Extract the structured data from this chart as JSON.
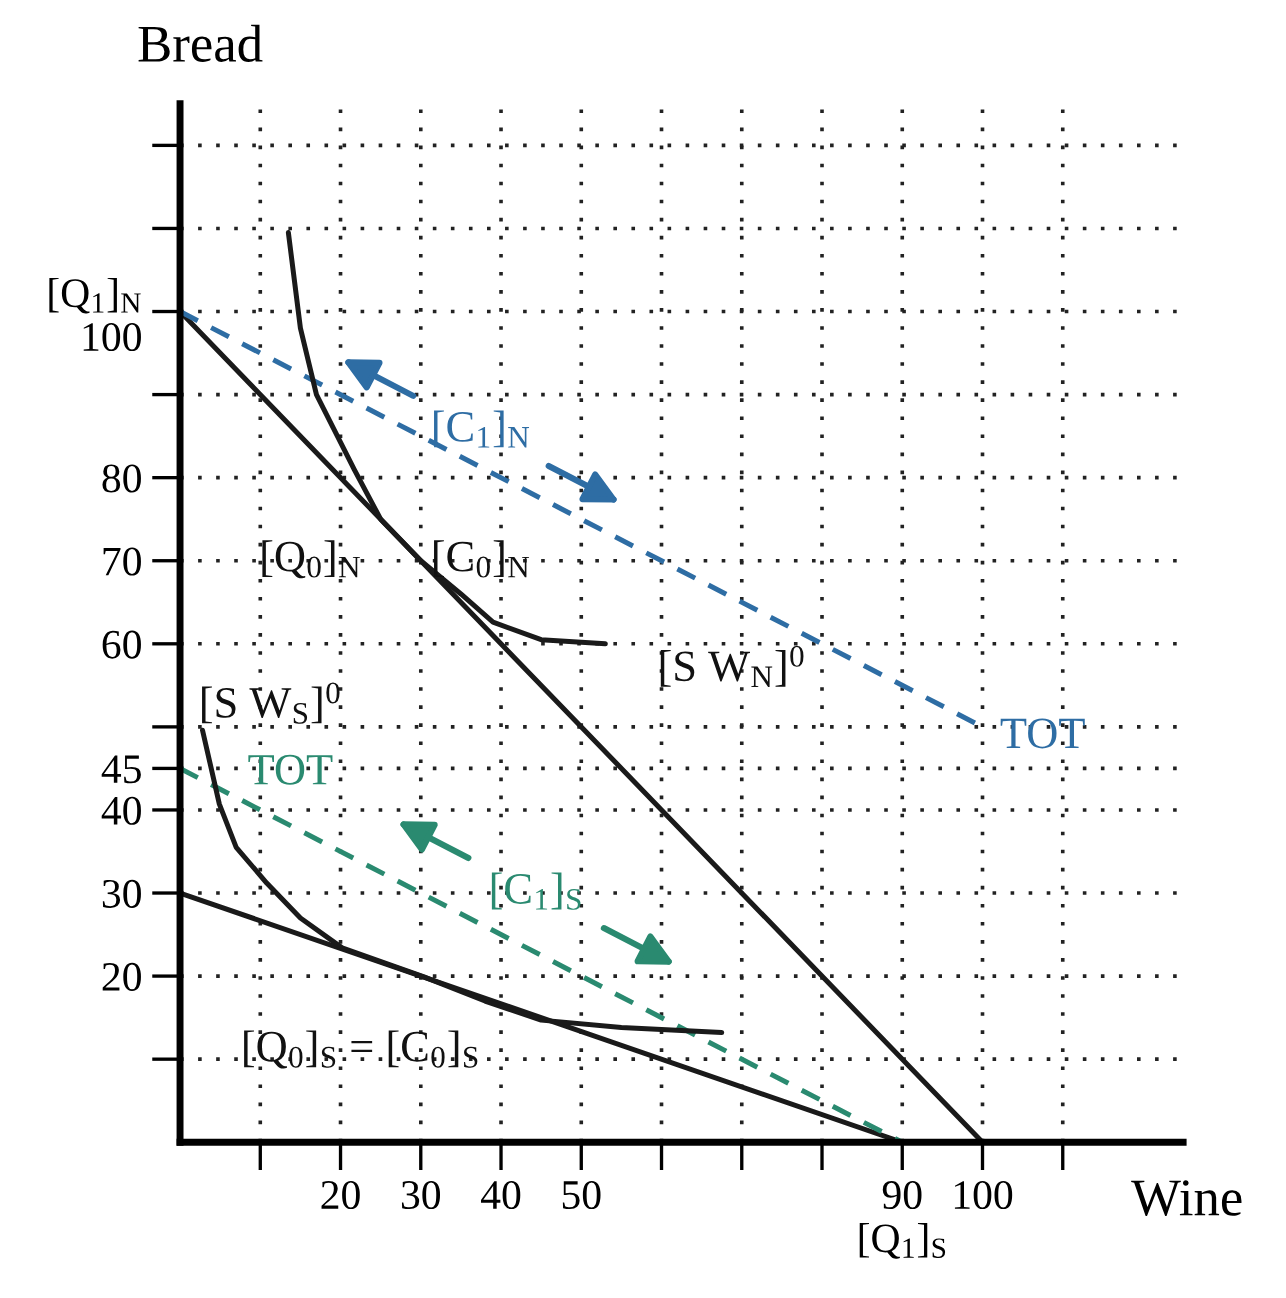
{
  "chart_data": {
    "type": "line",
    "xlabel": "Wine",
    "ylabel": "Bread",
    "xlim": [
      0,
      125
    ],
    "ylim": [
      0,
      125
    ],
    "xticks": [
      {
        "value": 10,
        "label": null
      },
      20,
      30,
      40,
      50,
      {
        "value": 60,
        "label": null
      },
      {
        "value": 70,
        "label": null
      },
      {
        "value": 80,
        "label": null
      },
      {
        "value": 90,
        "label": "90\n[Q$_{1}$]$_{S}$"
      },
      100,
      {
        "value": 110,
        "label": null
      }
    ],
    "yticks": [
      {
        "value": 10,
        "label": null
      },
      20,
      30,
      40,
      45,
      {
        "value": 50,
        "label": null
      },
      60,
      70,
      80,
      {
        "value": 90,
        "label": null
      },
      {
        "value": 100,
        "label": "[Q$_{1}$]$_{N}$\n100"
      },
      {
        "value": 110,
        "label": null
      },
      {
        "value": 120,
        "label": null
      }
    ],
    "grid": true,
    "marker": "none",
    "series": [
      {
        "color": "#1a1a1a",
        "line_style": "solid",
        "x": [
          0,
          100
        ],
        "values": [
          100,
          0
        ]
      },
      {
        "color": "#2e6da4",
        "line_style": "dashed",
        "x": [
          0,
          100
        ],
        "values": [
          100,
          50
        ]
      },
      {
        "color": "#1a1a1a",
        "line_style": "solid",
        "x": [
          0,
          90
        ],
        "values": [
          30,
          0
        ]
      },
      {
        "color": "#2a8a70",
        "line_style": "dashed",
        "x": [
          0,
          90
        ],
        "values": [
          45,
          0
        ]
      },
      {
        "color": "#1a1a1a",
        "line_style": "solid",
        "x": [
          13.5,
          15,
          17,
          21.7,
          25,
          30,
          35,
          39,
          45,
          53
        ],
        "values": [
          109.5,
          98,
          90,
          81,
          75,
          70,
          66,
          62.6,
          60.5,
          60
        ]
      },
      {
        "color": "#1a1a1a",
        "line_style": "solid",
        "x": [
          2.8,
          4.9,
          7,
          10.8,
          15,
          20.2,
          30.4,
          38,
          45,
          55,
          67.5
        ],
        "values": [
          49.6,
          40.7,
          35.5,
          31.2,
          27,
          23.4,
          19.9,
          17,
          14.7,
          13.8,
          13.2
        ]
      }
    ],
    "annotations": [
      "[C$_{1}$]$_{N}$",
      "[Q$_{0}$]$_{N}$",
      "[C$_{0}$]$_{N}$",
      "[S W$_{N}$]$^{0}$",
      "TOT",
      "[S W$_{S}$]$^{0}$",
      "TOT",
      "[C$_{1}$]$_{S}$",
      "[Q$_{0}$]$_{S}$ = [C$_{0}$]$_{S}$"
    ]
  }
}
